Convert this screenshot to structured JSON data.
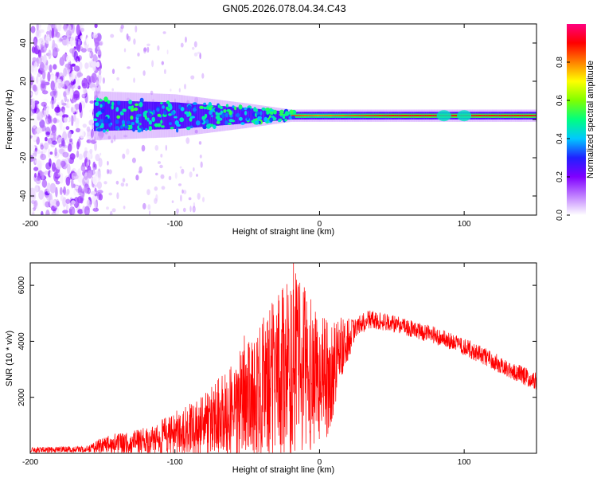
{
  "figure": {
    "title": "GN05.2026.078.04.34.C43"
  },
  "chart_data": [
    {
      "type": "heatmap",
      "xlabel": "Height of straight line (km)",
      "ylabel": "Frequency (Hz)",
      "xlim": [
        -200,
        150
      ],
      "ylim": [
        -50,
        50
      ],
      "x_ticks": [
        -200,
        -100,
        0,
        100
      ],
      "y_ticks": [
        -40,
        -20,
        0,
        20,
        40
      ],
      "grid": false,
      "colorbar": {
        "label": "Normalized spectral amplitude",
        "range": [
          0,
          1
        ],
        "ticks": [
          "0.0",
          "0.2",
          "0.4",
          "0.6",
          "0.8"
        ],
        "colormap": [
          "#ffffff",
          "#c080ff",
          "#8000ff",
          "#2020ff",
          "#00c8ff",
          "#00ff80",
          "#80ff00",
          "#ffff00",
          "#ff8000",
          "#ff0000",
          "#ff0080"
        ]
      },
      "features": {
        "noise_region_x": [
          -200,
          -155
        ],
        "band_center_hz": 2,
        "band_halfwidth_hz": [
          [
            -155,
            8
          ],
          [
            -100,
            7
          ],
          [
            -50,
            4
          ],
          [
            -20,
            2
          ],
          [
            0,
            2
          ],
          [
            150,
            2
          ]
        ],
        "peak_amplitude": [
          [
            -155,
            0.3
          ],
          [
            -100,
            0.32
          ],
          [
            -50,
            0.35
          ],
          [
            -20,
            0.85
          ],
          [
            0,
            0.8
          ],
          [
            50,
            0.9
          ],
          [
            150,
            0.9
          ]
        ]
      }
    },
    {
      "type": "line",
      "xlabel": "Height of straight line (km)",
      "ylabel": "SNR (10 * v/v)",
      "xlim": [
        -200,
        150
      ],
      "ylim": [
        0,
        6800
      ],
      "x_ticks": [
        -200,
        -100,
        0,
        100
      ],
      "y_ticks": [
        2000,
        4000,
        6000
      ],
      "grid": false,
      "series": [
        {
          "color": "#ff0000",
          "envelope_mid": [
            [
              -200,
              120
            ],
            [
              -160,
              150
            ],
            [
              -150,
              300
            ],
            [
              -120,
              450
            ],
            [
              -100,
              700
            ],
            [
              -80,
              1000
            ],
            [
              -60,
              1500
            ],
            [
              -45,
              2000
            ],
            [
              -35,
              2500
            ],
            [
              -25,
              2800
            ],
            [
              -15,
              3300
            ],
            [
              -5,
              2700
            ],
            [
              5,
              2600
            ],
            [
              15,
              3700
            ],
            [
              25,
              4500
            ],
            [
              35,
              4800
            ],
            [
              45,
              4700
            ],
            [
              60,
              4500
            ],
            [
              80,
              4200
            ],
            [
              100,
              3800
            ],
            [
              120,
              3300
            ],
            [
              140,
              2800
            ],
            [
              150,
              2550
            ]
          ],
          "envelope_spread": [
            [
              -200,
              100
            ],
            [
              -160,
              120
            ],
            [
              -150,
              300
            ],
            [
              -120,
              500
            ],
            [
              -100,
              800
            ],
            [
              -80,
              1100
            ],
            [
              -60,
              1800
            ],
            [
              -45,
              2400
            ],
            [
              -35,
              2800
            ],
            [
              -25,
              3200
            ],
            [
              -15,
              3200
            ],
            [
              -5,
              2600
            ],
            [
              5,
              2200
            ],
            [
              15,
              1200
            ],
            [
              25,
              350
            ],
            [
              60,
              300
            ],
            [
              100,
              320
            ],
            [
              150,
              320
            ]
          ],
          "spikes": [
            [
              -52,
              4200
            ],
            [
              -35,
              4400
            ],
            [
              -20,
              5800
            ],
            [
              -18,
              6800
            ],
            [
              -16,
              6200
            ],
            [
              -10,
              5800
            ],
            [
              -6,
              5500
            ]
          ]
        }
      ]
    }
  ]
}
